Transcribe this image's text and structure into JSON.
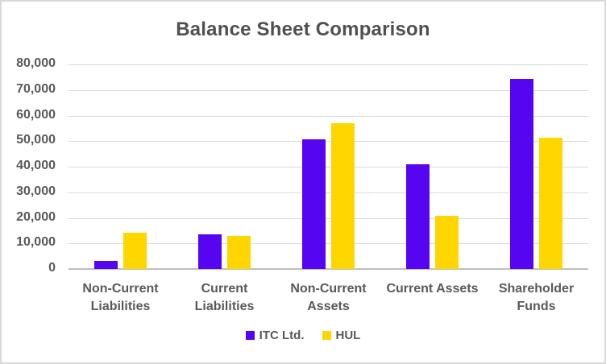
{
  "chart_data": {
    "type": "bar",
    "title": "Balance Sheet Comparison",
    "categories": [
      "Non-Current Liabilities",
      "Current Liabilities",
      "Non-Current Assets",
      "Current Assets",
      "Shareholder Funds"
    ],
    "series": [
      {
        "name": "ITC Ltd.",
        "color": "#5505F0",
        "values": [
          3200,
          13700,
          50800,
          41000,
          74300
        ]
      },
      {
        "name": "HUL",
        "color": "#FFD600",
        "values": [
          14300,
          12900,
          56900,
          20900,
          51500
        ]
      }
    ],
    "xlabel": "",
    "ylabel": "",
    "ylim": [
      0,
      80000
    ],
    "yticks": [
      {
        "value": 0,
        "label": "0"
      },
      {
        "value": 10000,
        "label": "10,000"
      },
      {
        "value": 20000,
        "label": "20,000"
      },
      {
        "value": 30000,
        "label": "30,000"
      },
      {
        "value": 40000,
        "label": "40,000"
      },
      {
        "value": 50000,
        "label": "50,000"
      },
      {
        "value": 60000,
        "label": "60,000"
      },
      {
        "value": 70000,
        "label": "70,000"
      },
      {
        "value": 80000,
        "label": "80,000"
      }
    ],
    "grid": true,
    "legend_position": "bottom",
    "colors": {
      "gridline": "#d9d9d9",
      "axis_line": "#bfbfbf",
      "text": "#595959",
      "background": "#ffffff",
      "border": "#d9d9d9"
    }
  }
}
